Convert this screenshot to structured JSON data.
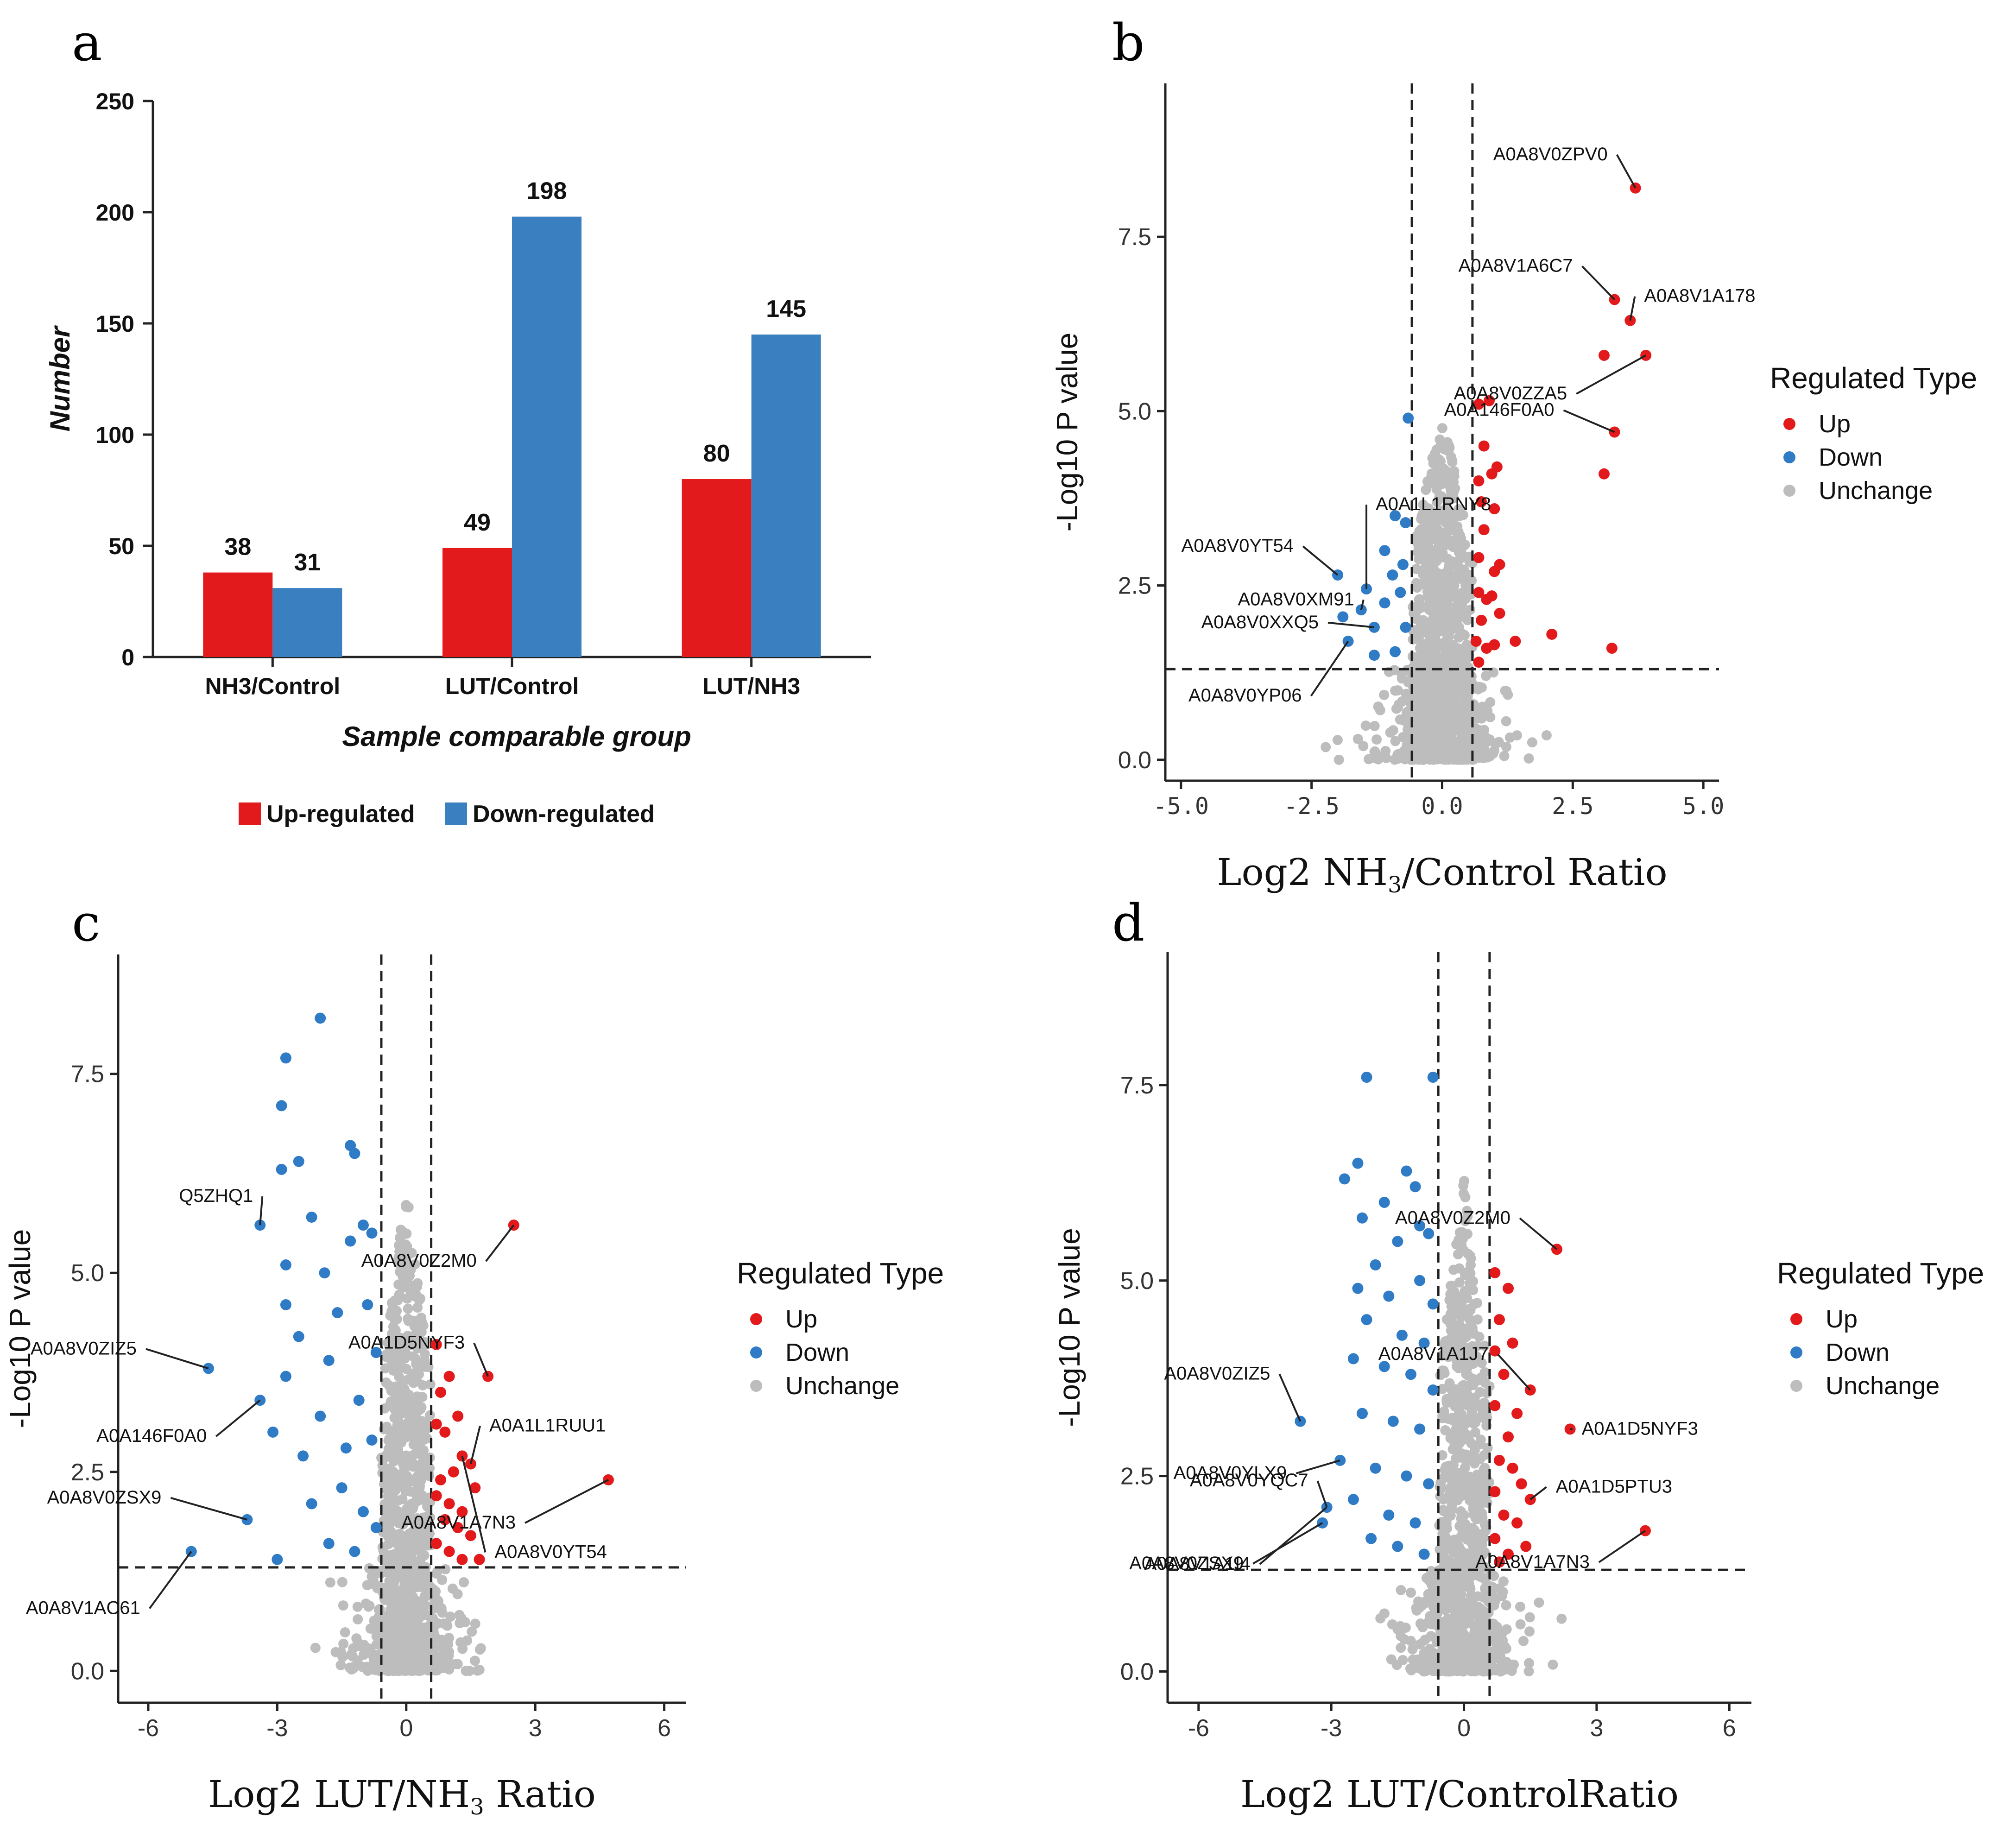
{
  "panel_letters": [
    "a",
    "b",
    "c",
    "d"
  ],
  "colors": {
    "up": "#e31a1c",
    "down": "#2f7bc6",
    "unchange": "#bdbdbd",
    "bar_up": "#e31a1c",
    "bar_down": "#3a7fbf"
  },
  "chart_data": [
    {
      "panel": "a",
      "type": "bar",
      "title": "",
      "xlabel": "Sample comparable group",
      "ylabel": "Number",
      "ylim": [
        0,
        250
      ],
      "yticks": [
        "0",
        "50",
        "100",
        "150",
        "200",
        "250"
      ],
      "categories": [
        "NH3/Control",
        "LUT/Control",
        "LUT/NH3"
      ],
      "series": [
        {
          "name": "Up-regulated",
          "color": "#e31a1c",
          "values": [
            38,
            49,
            80
          ]
        },
        {
          "name": "Down-regulated",
          "color": "#3a7fbf",
          "values": [
            31,
            198,
            145
          ]
        }
      ],
      "legend_position": "bottom"
    },
    {
      "panel": "b",
      "type": "scatter",
      "subtype": "volcano",
      "xlabel_parts": [
        "Log2 NH",
        "3",
        "/Control Ratio"
      ],
      "ylabel": "-Log10 P value",
      "xlim": [
        -5.3,
        5.3
      ],
      "ylim": [
        -0.3,
        9.7
      ],
      "xticks": [
        "-5.0",
        "-2.5",
        "0.0",
        "2.5",
        "5.0"
      ],
      "yticks": [
        "0.0",
        "2.5",
        "5.0",
        "7.5"
      ],
      "xtick_values": [
        -5,
        -2.5,
        0,
        2.5,
        5
      ],
      "ytick_values": [
        0,
        2.5,
        5,
        7.5
      ],
      "fc_threshold": 0.58,
      "p_threshold": 1.3,
      "legend_title": "Regulated Type",
      "legend_items": [
        "Up",
        "Down",
        "Unchange"
      ],
      "up_points": [
        [
          3.7,
          8.2
        ],
        [
          3.3,
          6.6
        ],
        [
          3.6,
          6.3
        ],
        [
          3.1,
          5.8
        ],
        [
          3.9,
          5.8
        ],
        [
          3.3,
          4.7
        ],
        [
          3.1,
          4.1
        ],
        [
          3.25,
          1.6
        ],
        [
          0.7,
          5.1
        ],
        [
          0.9,
          5.15
        ],
        [
          0.8,
          4.5
        ],
        [
          0.7,
          4.0
        ],
        [
          0.95,
          4.1
        ],
        [
          1.05,
          4.2
        ],
        [
          0.75,
          3.7
        ],
        [
          1.0,
          3.6
        ],
        [
          0.8,
          3.3
        ],
        [
          0.7,
          2.9
        ],
        [
          1.0,
          2.7
        ],
        [
          1.1,
          2.8
        ],
        [
          0.7,
          2.4
        ],
        [
          0.85,
          2.3
        ],
        [
          0.95,
          2.35
        ],
        [
          0.75,
          2.0
        ],
        [
          1.1,
          2.1
        ],
        [
          0.65,
          1.7
        ],
        [
          0.85,
          1.6
        ],
        [
          1.0,
          1.65
        ],
        [
          1.4,
          1.7
        ],
        [
          2.1,
          1.8
        ],
        [
          0.7,
          1.4
        ]
      ],
      "down_points": [
        [
          -0.65,
          4.9
        ],
        [
          -2.0,
          2.65
        ],
        [
          -1.45,
          2.45
        ],
        [
          -1.9,
          2.05
        ],
        [
          -1.55,
          2.15
        ],
        [
          -1.3,
          1.9
        ],
        [
          -1.1,
          2.25
        ],
        [
          -0.8,
          2.4
        ],
        [
          -0.95,
          2.65
        ],
        [
          -0.7,
          3.4
        ],
        [
          -0.9,
          3.5
        ],
        [
          -1.8,
          1.7
        ],
        [
          -1.3,
          1.5
        ],
        [
          -0.9,
          1.55
        ],
        [
          -0.7,
          1.9
        ],
        [
          -1.1,
          3.0
        ],
        [
          -0.75,
          2.8
        ]
      ],
      "labels": [
        {
          "text": "A0A8V0ZPV0",
          "point": [
            3.7,
            8.2
          ]
        },
        {
          "text": "A0A8V1A6C7",
          "point": [
            3.3,
            6.6
          ]
        },
        {
          "text": "A0A8V1A178",
          "point": [
            3.6,
            6.3
          ]
        },
        {
          "text": "A0A8V0ZZA5",
          "point": [
            3.9,
            5.8
          ]
        },
        {
          "text": "A0A146F0A0",
          "point": [
            3.3,
            4.7
          ]
        },
        {
          "text": "A0A1L1RNY8",
          "point": [
            -1.45,
            2.45
          ]
        },
        {
          "text": "A0A8V0YT54",
          "point": [
            -2.0,
            2.65
          ]
        },
        {
          "text": "A0A8V0XM91",
          "point": [
            -1.55,
            2.15
          ]
        },
        {
          "text": "A0A8V0XXQ5",
          "point": [
            -1.3,
            1.9
          ]
        },
        {
          "text": "A0A8V0YP06",
          "point": [
            -1.8,
            1.7
          ]
        }
      ]
    },
    {
      "panel": "c",
      "type": "scatter",
      "subtype": "volcano",
      "xlabel_parts": [
        "Log2 LUT/NH",
        "3",
        " Ratio"
      ],
      "ylabel": "-Log10 P value",
      "xlim": [
        -6.7,
        6.5
      ],
      "ylim": [
        -0.4,
        9.0
      ],
      "xticks": [
        "-6",
        "-3",
        "0",
        "3",
        "6"
      ],
      "yticks": [
        "0.0",
        "2.5",
        "5.0",
        "7.5"
      ],
      "xtick_values": [
        -6,
        -3,
        0,
        3,
        6
      ],
      "ytick_values": [
        0,
        2.5,
        5,
        7.5
      ],
      "fc_threshold": 0.58,
      "p_threshold": 1.3,
      "legend_title": "Regulated Type",
      "legend_items": [
        "Up",
        "Down",
        "Unchange"
      ],
      "up_points": [
        [
          2.5,
          5.6
        ],
        [
          1.9,
          3.7
        ],
        [
          4.7,
          2.4
        ],
        [
          0.7,
          4.1
        ],
        [
          0.8,
          3.5
        ],
        [
          1.0,
          3.7
        ],
        [
          0.7,
          3.1
        ],
        [
          0.9,
          3.0
        ],
        [
          1.2,
          3.2
        ],
        [
          1.5,
          2.6
        ],
        [
          1.3,
          2.7
        ],
        [
          1.1,
          2.5
        ],
        [
          0.8,
          2.4
        ],
        [
          0.7,
          2.2
        ],
        [
          1.0,
          2.1
        ],
        [
          1.3,
          2.0
        ],
        [
          1.6,
          2.3
        ],
        [
          0.9,
          1.9
        ],
        [
          1.2,
          1.8
        ],
        [
          0.7,
          1.6
        ],
        [
          1.5,
          1.7
        ],
        [
          1.0,
          1.5
        ],
        [
          1.3,
          1.4
        ],
        [
          1.7,
          1.4
        ]
      ],
      "down_points": [
        [
          -2.0,
          8.2
        ],
        [
          -2.8,
          7.7
        ],
        [
          -2.9,
          7.1
        ],
        [
          -2.5,
          6.4
        ],
        [
          -1.2,
          6.5
        ],
        [
          -1.3,
          6.6
        ],
        [
          -2.9,
          6.3
        ],
        [
          -3.4,
          5.6
        ],
        [
          -2.2,
          5.7
        ],
        [
          -1.0,
          5.6
        ],
        [
          -1.3,
          5.4
        ],
        [
          -2.8,
          5.1
        ],
        [
          -1.9,
          5.0
        ],
        [
          -0.8,
          5.5
        ],
        [
          -2.8,
          4.6
        ],
        [
          -1.6,
          4.5
        ],
        [
          -0.9,
          4.6
        ],
        [
          -2.5,
          4.2
        ],
        [
          -4.6,
          3.8
        ],
        [
          -1.8,
          3.9
        ],
        [
          -3.4,
          3.4
        ],
        [
          -2.8,
          3.7
        ],
        [
          -2.0,
          3.2
        ],
        [
          -1.1,
          3.4
        ],
        [
          -0.7,
          4.0
        ],
        [
          -3.1,
          3.0
        ],
        [
          -2.4,
          2.7
        ],
        [
          -1.4,
          2.8
        ],
        [
          -0.8,
          2.9
        ],
        [
          -3.7,
          1.9
        ],
        [
          -2.2,
          2.1
        ],
        [
          -1.5,
          2.3
        ],
        [
          -1.0,
          2.0
        ],
        [
          -5.0,
          1.5
        ],
        [
          -3.0,
          1.4
        ],
        [
          -1.8,
          1.6
        ],
        [
          -1.2,
          1.5
        ],
        [
          -0.7,
          1.8
        ]
      ],
      "labels": [
        {
          "text": "A0A8V0Z2M0",
          "point": [
            2.5,
            5.6
          ]
        },
        {
          "text": "A0A1D5NYF3",
          "point": [
            1.9,
            3.7
          ]
        },
        {
          "text": "A0A1L1RUU1",
          "point": [
            1.5,
            2.6
          ]
        },
        {
          "text": "A0A8V1A7N3",
          "point": [
            4.7,
            2.4
          ]
        },
        {
          "text": "A0A8V0YT54",
          "point": [
            1.3,
            2.7
          ]
        },
        {
          "text": "Q5ZHQ1",
          "point": [
            -3.4,
            5.6
          ]
        },
        {
          "text": "A0A8V0ZIZ5",
          "point": [
            -4.6,
            3.8
          ]
        },
        {
          "text": "A0A146F0A0",
          "point": [
            -3.4,
            3.4
          ]
        },
        {
          "text": "A0A8V0ZSX9",
          "point": [
            -3.7,
            1.9
          ]
        },
        {
          "text": "A0A8V1AC61",
          "point": [
            -5.0,
            1.5
          ]
        }
      ]
    },
    {
      "panel": "d",
      "type": "scatter",
      "subtype": "volcano",
      "xlabel_parts": [
        "Log2 LUT/ControlRatio"
      ],
      "ylabel": "-Log10 P value",
      "xlim": [
        -6.7,
        6.5
      ],
      "ylim": [
        -0.4,
        9.2
      ],
      "xticks": [
        "-6",
        "-3",
        "0",
        "3",
        "6"
      ],
      "yticks": [
        "0.0",
        "2.5",
        "5.0",
        "7.5"
      ],
      "xtick_values": [
        -6,
        -3,
        0,
        3,
        6
      ],
      "ytick_values": [
        0,
        2.5,
        5,
        7.5
      ],
      "fc_threshold": 0.58,
      "p_threshold": 1.3,
      "legend_title": "Regulated Type",
      "legend_items": [
        "Up",
        "Down",
        "Unchange"
      ],
      "up_points": [
        [
          2.1,
          5.4
        ],
        [
          1.5,
          3.6
        ],
        [
          2.4,
          3.1
        ],
        [
          1.5,
          2.2
        ],
        [
          4.1,
          1.8
        ],
        [
          0.7,
          5.1
        ],
        [
          1.0,
          4.9
        ],
        [
          0.8,
          4.5
        ],
        [
          0.7,
          4.1
        ],
        [
          1.1,
          4.2
        ],
        [
          0.9,
          3.8
        ],
        [
          1.2,
          3.3
        ],
        [
          0.7,
          3.4
        ],
        [
          1.0,
          3.0
        ],
        [
          0.8,
          2.7
        ],
        [
          1.1,
          2.6
        ],
        [
          0.7,
          2.3
        ],
        [
          1.3,
          2.4
        ],
        [
          0.9,
          2.0
        ],
        [
          1.2,
          1.9
        ],
        [
          0.7,
          1.7
        ],
        [
          1.0,
          1.5
        ],
        [
          1.4,
          1.6
        ],
        [
          0.8,
          1.4
        ]
      ],
      "down_points": [
        [
          -2.2,
          7.6
        ],
        [
          -0.7,
          7.6
        ],
        [
          -2.4,
          6.5
        ],
        [
          -2.7,
          6.3
        ],
        [
          -1.3,
          6.4
        ],
        [
          -1.1,
          6.2
        ],
        [
          -1.8,
          6.0
        ],
        [
          -2.3,
          5.8
        ],
        [
          -1.0,
          5.7
        ],
        [
          -0.8,
          5.6
        ],
        [
          -1.5,
          5.5
        ],
        [
          -2.0,
          5.2
        ],
        [
          -2.4,
          4.9
        ],
        [
          -1.7,
          4.8
        ],
        [
          -1.0,
          5.0
        ],
        [
          -0.7,
          4.7
        ],
        [
          -2.2,
          4.5
        ],
        [
          -1.4,
          4.3
        ],
        [
          -0.9,
          4.2
        ],
        [
          -2.5,
          4.0
        ],
        [
          -1.8,
          3.9
        ],
        [
          -1.2,
          3.8
        ],
        [
          -0.7,
          3.6
        ],
        [
          -3.7,
          3.2
        ],
        [
          -2.3,
          3.3
        ],
        [
          -1.6,
          3.2
        ],
        [
          -1.0,
          3.1
        ],
        [
          -2.8,
          2.7
        ],
        [
          -2.0,
          2.6
        ],
        [
          -1.3,
          2.5
        ],
        [
          -0.8,
          2.4
        ],
        [
          -3.1,
          2.1
        ],
        [
          -2.5,
          2.2
        ],
        [
          -1.7,
          2.0
        ],
        [
          -1.1,
          1.9
        ],
        [
          -3.2,
          1.9
        ],
        [
          -2.1,
          1.7
        ],
        [
          -1.5,
          1.6
        ],
        [
          -0.9,
          1.5
        ]
      ],
      "labels": [
        {
          "text": "A0A8V0Z2M0",
          "point": [
            2.1,
            5.4
          ]
        },
        {
          "text": "A0A8V1A1J7",
          "point": [
            1.5,
            3.6
          ]
        },
        {
          "text": "A0A1D5NYF3",
          "point": [
            2.4,
            3.1
          ]
        },
        {
          "text": "A0A1D5PTU3",
          "point": [
            1.5,
            2.2
          ]
        },
        {
          "text": "A0A8V1A7N3",
          "point": [
            4.1,
            1.8
          ]
        },
        {
          "text": "A0A8V0ZIZ5",
          "point": [
            -3.7,
            3.2
          ]
        },
        {
          "text": "A0A8V0YLX9",
          "point": [
            -2.8,
            2.7
          ]
        },
        {
          "text": "A0A8V0YQC7",
          "point": [
            -3.1,
            2.1
          ]
        },
        {
          "text": "A0A8V0ZSX9",
          "point": [
            -3.2,
            1.9
          ]
        },
        {
          "text": "A0A8V1A1I4",
          "point": [
            -3.1,
            2.1
          ]
        }
      ]
    }
  ]
}
